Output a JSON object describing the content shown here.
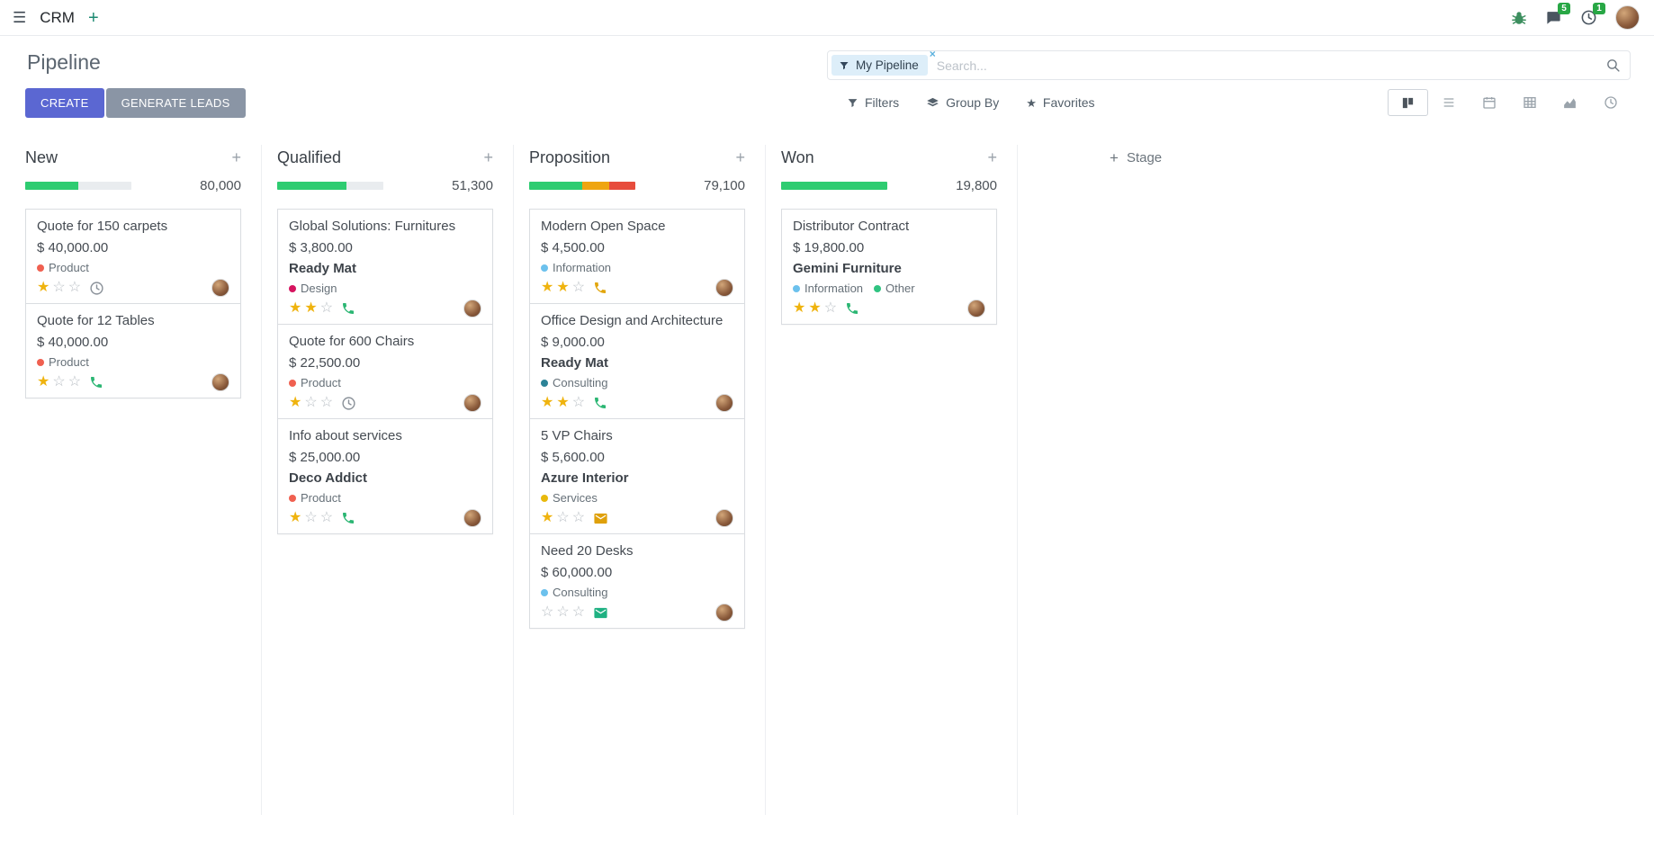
{
  "navbar": {
    "app_name": "CRM",
    "messages_badge": "5",
    "activities_badge": "1"
  },
  "icons": {
    "menu": "☰",
    "plus": "+",
    "star_filled": "★",
    "star_empty": "☆",
    "facet_remove": "×",
    "favorites_star": "★"
  },
  "control_panel": {
    "title": "Pipeline",
    "create_label": "CREATE",
    "generate_leads_label": "GENERATE LEADS",
    "search": {
      "facet_label": "My Pipeline",
      "placeholder": "Search..."
    },
    "filters_label": "Filters",
    "group_by_label": "Group By",
    "favorites_label": "Favorites"
  },
  "colors": {
    "primary_button": "#5b67d2",
    "secondary_button": "#8a95a5",
    "badge_green": "#28a745",
    "progress_green": "#2ecc71",
    "progress_yellow": "#efa510",
    "progress_red": "#e74c3c",
    "star_gold": "#efb30e"
  },
  "kanban": {
    "add_stage_label": "Stage",
    "columns": [
      {
        "title": "New",
        "total": "80,000",
        "progress": [
          {
            "color": "#2ecc71",
            "pct": 50
          },
          {
            "color": "#e9ecef",
            "pct": 50
          }
        ],
        "cards": [
          {
            "title": "Quote for 150 carpets",
            "amount": "$ 40,000.00",
            "partner": null,
            "tags": [
              {
                "label": "Product",
                "color": "#f06050"
              }
            ],
            "stars": 1,
            "activity": {
              "icon": "clock",
              "color": "#8a9199"
            }
          },
          {
            "title": "Quote for 12 Tables",
            "amount": "$ 40,000.00",
            "partner": null,
            "tags": [
              {
                "label": "Product",
                "color": "#f06050"
              }
            ],
            "stars": 1,
            "activity": {
              "icon": "phone",
              "color": "#2bb673"
            }
          }
        ]
      },
      {
        "title": "Qualified",
        "total": "51,300",
        "progress": [
          {
            "color": "#2ecc71",
            "pct": 65
          },
          {
            "color": "#e9ecef",
            "pct": 35
          }
        ],
        "cards": [
          {
            "title": "Global Solutions: Furnitures",
            "amount": "$ 3,800.00",
            "partner": "Ready Mat",
            "tags": [
              {
                "label": "Design",
                "color": "#d6145f"
              }
            ],
            "stars": 2,
            "activity": {
              "icon": "phone",
              "color": "#2bb673"
            }
          },
          {
            "title": "Quote for 600 Chairs",
            "amount": "$ 22,500.00",
            "partner": null,
            "tags": [
              {
                "label": "Product",
                "color": "#f06050"
              }
            ],
            "stars": 1,
            "activity": {
              "icon": "clock",
              "color": "#8a9199"
            }
          },
          {
            "title": "Info about services",
            "amount": "$ 25,000.00",
            "partner": "Deco Addict",
            "tags": [
              {
                "label": "Product",
                "color": "#f06050"
              }
            ],
            "stars": 1,
            "activity": {
              "icon": "phone",
              "color": "#2bb673"
            }
          }
        ]
      },
      {
        "title": "Proposition",
        "total": "79,100",
        "progress": [
          {
            "color": "#2ecc71",
            "pct": 50
          },
          {
            "color": "#efa510",
            "pct": 25
          },
          {
            "color": "#e74c3c",
            "pct": 25
          }
        ],
        "cards": [
          {
            "title": "Modern Open Space",
            "amount": "$ 4,500.00",
            "partner": null,
            "tags": [
              {
                "label": "Information",
                "color": "#6cc1ed"
              }
            ],
            "stars": 2,
            "activity": {
              "icon": "phone",
              "color": "#e2a60d"
            }
          },
          {
            "title": "Office Design and Architecture",
            "amount": "$ 9,000.00",
            "partner": "Ready Mat",
            "tags": [
              {
                "label": "Consulting",
                "color": "#2c8397"
              }
            ],
            "stars": 2,
            "activity": {
              "icon": "phone",
              "color": "#2bb673"
            }
          },
          {
            "title": "5 VP Chairs",
            "amount": "$ 5,600.00",
            "partner": "Azure Interior",
            "tags": [
              {
                "label": "Services",
                "color": "#e8b90c"
              }
            ],
            "stars": 1,
            "activity": {
              "icon": "envelope",
              "color": "#dfa00a"
            }
          },
          {
            "title": "Need 20 Desks",
            "amount": "$ 60,000.00",
            "partner": null,
            "tags": [
              {
                "label": "Consulting",
                "color": "#6cc1ed"
              }
            ],
            "stars": 0,
            "activity": {
              "icon": "envelope",
              "color": "#1fb182"
            }
          }
        ]
      },
      {
        "title": "Won",
        "total": "19,800",
        "progress": [
          {
            "color": "#2ecc71",
            "pct": 100
          }
        ],
        "cards": [
          {
            "title": "Distributor Contract",
            "amount": "$ 19,800.00",
            "partner": "Gemini Furniture",
            "tags": [
              {
                "label": "Information",
                "color": "#6cc1ed"
              },
              {
                "label": "Other",
                "color": "#30c381"
              }
            ],
            "stars": 2,
            "activity": {
              "icon": "phone",
              "color": "#2bb673"
            }
          }
        ]
      }
    ]
  }
}
